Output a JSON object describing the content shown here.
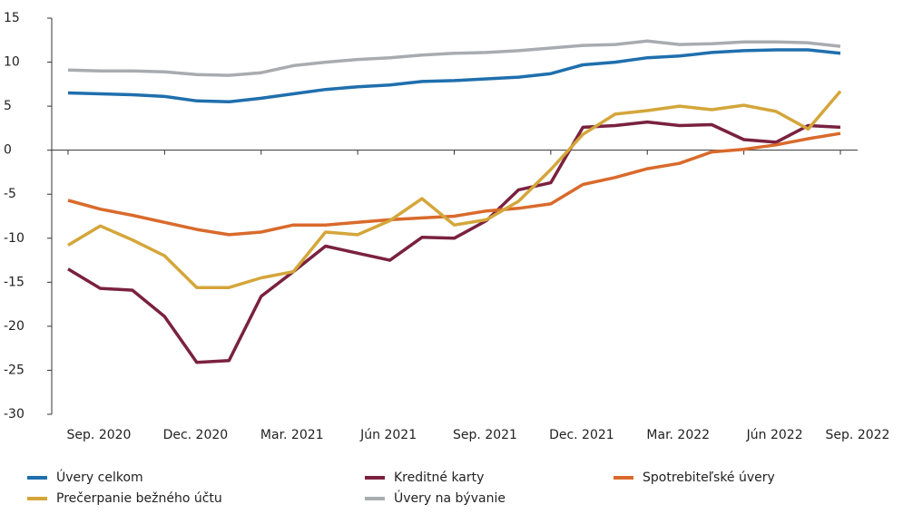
{
  "chart_data": {
    "type": "line",
    "categories": [
      "Sep. 2020",
      null,
      null,
      "Dec. 2020",
      null,
      null,
      "Mar. 2021",
      null,
      null,
      "Jún 2021",
      null,
      null,
      "Sep. 2021",
      null,
      null,
      "Dec. 2021",
      null,
      null,
      "Mar. 2022",
      null,
      null,
      "Jún 2022",
      null,
      null,
      "Sep. 2022"
    ],
    "series": [
      {
        "name": "Úvery celkom",
        "color": "#1f6fad",
        "values": [
          6.5,
          6.4,
          6.3,
          6.1,
          5.6,
          5.5,
          5.9,
          6.4,
          6.9,
          7.2,
          7.4,
          7.8,
          7.9,
          8.1,
          8.3,
          8.7,
          9.7,
          10.0,
          10.5,
          10.7,
          11.1,
          11.3,
          11.4,
          11.4,
          11.0
        ]
      },
      {
        "name": "Kreditné karty",
        "color": "#7a2140",
        "values": [
          -13.5,
          -15.7,
          -15.9,
          -18.9,
          -24.1,
          -23.9,
          -16.6,
          -13.8,
          -10.9,
          -11.7,
          -12.5,
          -9.9,
          -10.0,
          -8.0,
          -4.5,
          -3.7,
          2.6,
          2.8,
          3.2,
          2.8,
          2.9,
          1.2,
          0.9,
          2.8,
          2.6
        ]
      },
      {
        "name": "Spotrebiteľské úvery",
        "color": "#d96a2c",
        "values": [
          -5.7,
          -6.7,
          -7.4,
          -8.2,
          -9.0,
          -9.6,
          -9.3,
          -8.5,
          -8.5,
          -8.2,
          -7.9,
          -7.7,
          -7.5,
          -6.9,
          -6.6,
          -6.1,
          -3.9,
          -3.1,
          -2.1,
          -1.5,
          -0.2,
          0.1,
          0.6,
          1.3,
          1.9
        ]
      },
      {
        "name": "Prečerpanie bežného účtu",
        "color": "#d4a63a",
        "values": [
          -10.8,
          -8.6,
          -10.2,
          -12.0,
          -15.6,
          -15.6,
          -14.5,
          -13.8,
          -9.3,
          -9.6,
          -8.0,
          -5.5,
          -8.5,
          -7.9,
          -5.8,
          -2.2,
          1.8,
          4.1,
          4.5,
          5.0,
          4.6,
          5.1,
          4.4,
          2.4,
          6.7
        ]
      },
      {
        "name": "Úvery na bývanie",
        "color": "#a8acb0",
        "values": [
          9.1,
          9.0,
          9.0,
          8.9,
          8.6,
          8.5,
          8.8,
          9.6,
          10.0,
          10.3,
          10.5,
          10.8,
          11.0,
          11.1,
          11.3,
          11.6,
          11.9,
          12.0,
          12.4,
          12.0,
          12.1,
          12.3,
          12.3,
          12.2,
          11.8
        ]
      }
    ],
    "ylim": [
      -30,
      15
    ],
    "yticks": [
      -30,
      -25,
      -20,
      -15,
      -10,
      -5,
      0,
      5,
      10,
      15
    ]
  }
}
